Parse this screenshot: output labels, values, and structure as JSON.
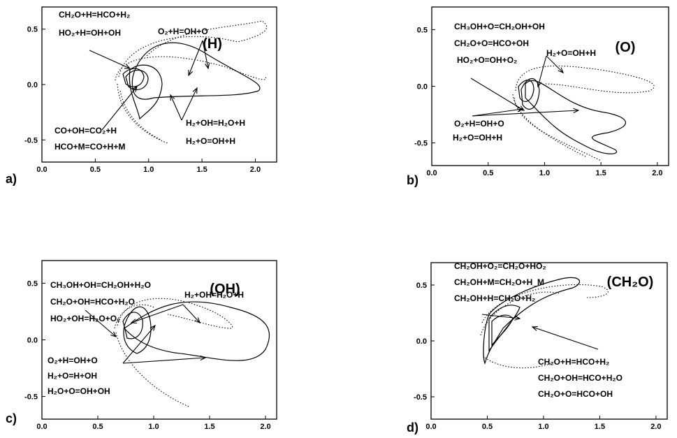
{
  "chart_data": [
    {
      "type": "contour",
      "panel_label": "a)",
      "species_label": "(H)",
      "xlim": [
        0.0,
        2.2
      ],
      "ylim": [
        -0.7,
        0.7
      ],
      "x_ticks": [
        "0.0",
        "0.5",
        "1.0",
        "1.5",
        "2.0"
      ],
      "y_ticks": [
        "0.5",
        "0.0",
        "-0.5"
      ],
      "annotations": [
        "CH₂O+H=HCO+H₂",
        "HO₂+H=OH+OH",
        "O₂+H=OH+O",
        "CO+OH=CO₂+H",
        "HCO+M=CO+H+M",
        "H₂+OH=H₂O+H",
        "H₂+O=OH+H"
      ]
    },
    {
      "type": "contour",
      "panel_label": "b)",
      "species_label": "(O)",
      "xlim": [
        0.0,
        2.1
      ],
      "ylim": [
        -0.7,
        0.7
      ],
      "x_ticks": [
        "0.0",
        "0.5",
        "1.0",
        "1.5",
        "2.0"
      ],
      "y_ticks": [
        "0.5",
        "0.0",
        "-0.5"
      ],
      "annotations": [
        "CH₃OH+O=CH₂OH+OH",
        "CH₂O+O=HCO+OH",
        "HO₂+O=OH+O₂",
        "H₂+O=OH+H",
        "O₂+H=OH+O",
        "H₂+O=OH+H"
      ]
    },
    {
      "type": "contour",
      "panel_label": "c)",
      "species_label": "(OH)",
      "xlim": [
        0.0,
        2.1
      ],
      "ylim": [
        -0.7,
        0.7
      ],
      "x_ticks": [
        "0.0",
        "0.5",
        "1.0",
        "1.5",
        "2.0"
      ],
      "y_ticks": [
        "0.5",
        "0.0",
        "-0.5"
      ],
      "annotations": [
        "CH₃OH+OH=CH₂OH+H₂O",
        "CH₂O+OH=HCO+H₂O",
        "HO₂+OH=H₂O+O₂",
        "H₂+OH=H₂O+H",
        "O₂+H=OH+O",
        "H₂+O=H+OH",
        "H₂O+O=OH+OH"
      ]
    },
    {
      "type": "contour",
      "panel_label": "d)",
      "species_label": "(CH₂O)",
      "xlim": [
        0.0,
        2.1
      ],
      "ylim": [
        -0.7,
        0.7
      ],
      "x_ticks": [
        "0.0",
        "0.5",
        "1.0",
        "1.5",
        "2.0"
      ],
      "y_ticks": [
        "0.5",
        "0.0",
        "-0.5"
      ],
      "annotations": [
        "CH₂OH+O₂=CH₂O+HO₂",
        "CH₂OH+M=CH₂O+H_M",
        "CH₂OH+H=CH₂O+H₂",
        "CH₂O+H=HCO+H₂",
        "CH₂O+OH=HCO+H₂O",
        "CH₂O+O=HCO+OH"
      ]
    }
  ]
}
